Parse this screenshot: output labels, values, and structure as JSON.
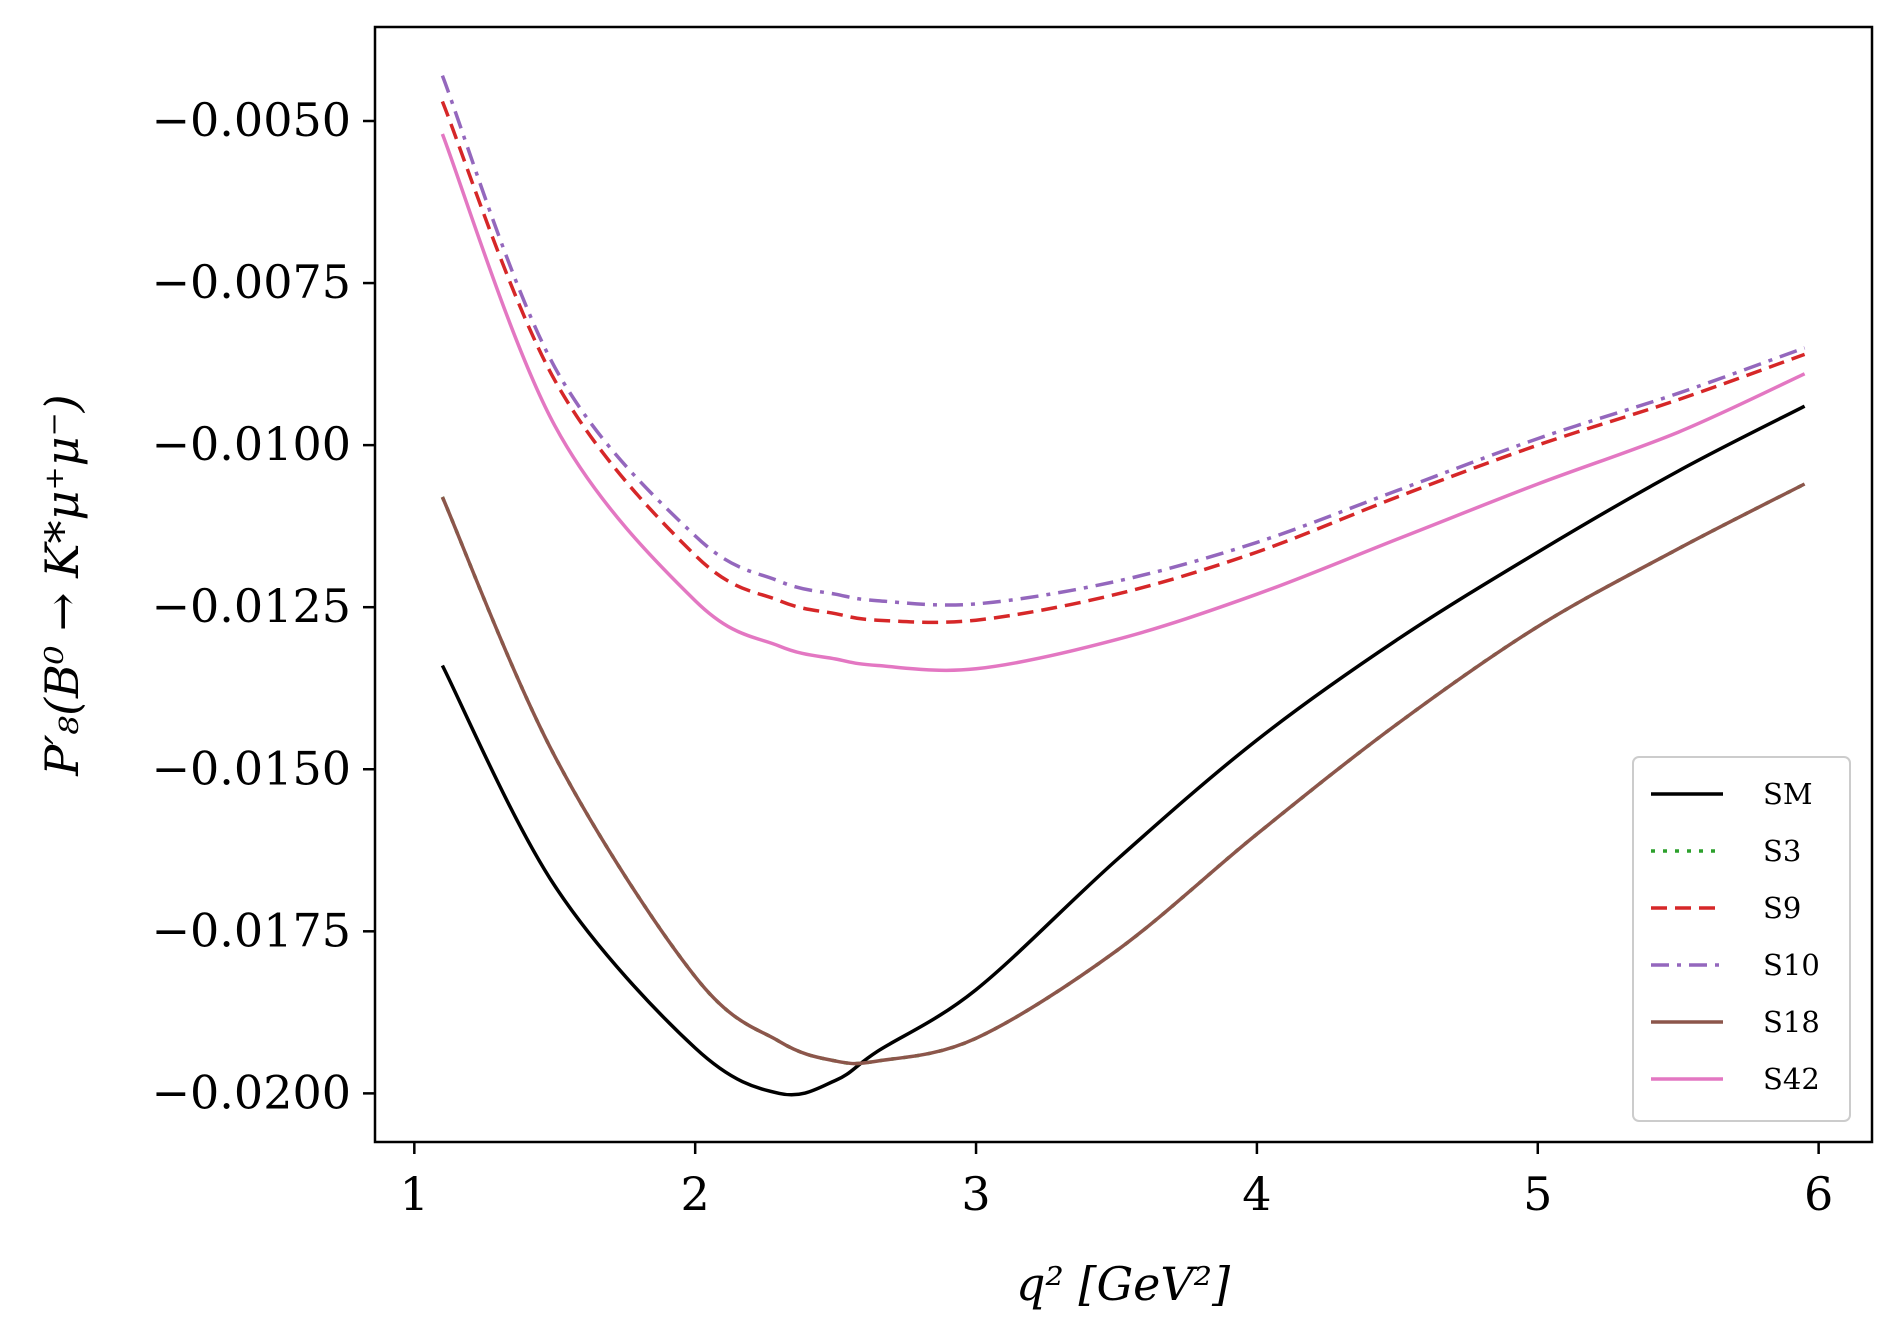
{
  "chart_data": {
    "type": "line",
    "title": "",
    "xlabel": "q² [GeV²]",
    "ylabel": "P′₈(B⁰ → K*μ⁺μ⁻)",
    "xlim": [
      0.86,
      6.19
    ],
    "ylim": [
      -0.02075,
      -0.00355
    ],
    "xticks": [
      1,
      2,
      3,
      4,
      5,
      6
    ],
    "xtick_labels": [
      "1",
      "2",
      "3",
      "4",
      "5",
      "6"
    ],
    "yticks": [
      -0.005,
      -0.0075,
      -0.01,
      -0.0125,
      -0.015,
      -0.0175,
      -0.02
    ],
    "ytick_labels": [
      "−0.0050",
      "−0.0075",
      "−0.0100",
      "−0.0125",
      "−0.0150",
      "−0.0175",
      "−0.0200"
    ],
    "grid": false,
    "legend_position": "lower-right",
    "x": [
      1.1,
      1.5,
      2.0,
      2.3,
      2.5,
      2.65,
      3.0,
      3.5,
      4.0,
      4.5,
      5.0,
      5.5,
      5.95
    ],
    "series": [
      {
        "name": "SM",
        "color": "#000000",
        "dash": "solid",
        "values": [
          -0.0134,
          -0.0168,
          -0.0193,
          -0.02,
          -0.0198,
          -0.01935,
          -0.0184,
          -0.0164,
          -0.01455,
          -0.013,
          -0.01165,
          -0.0104,
          -0.0094
        ]
      },
      {
        "name": "S3",
        "color": "#2ca02c",
        "dash": "dotted",
        "values": [
          -0.0108,
          -0.0148,
          -0.0182,
          -0.0192,
          -0.0195,
          -0.0195,
          -0.01915,
          -0.0178,
          -0.016,
          -0.0143,
          -0.0128,
          -0.0116,
          -0.0106
        ]
      },
      {
        "name": "S9",
        "color": "#d62728",
        "dash": "dashed",
        "values": [
          -0.0047,
          -0.009,
          -0.0117,
          -0.0124,
          -0.0126,
          -0.0127,
          -0.0127,
          -0.0123,
          -0.01165,
          -0.0108,
          -0.01,
          -0.0093,
          -0.0086
        ]
      },
      {
        "name": "S10",
        "color": "#9467bd",
        "dash": "dashdot",
        "values": [
          -0.0043,
          -0.0088,
          -0.0114,
          -0.0121,
          -0.0123,
          -0.0124,
          -0.01245,
          -0.0121,
          -0.0115,
          -0.0107,
          -0.0099,
          -0.0092,
          -0.0085
        ]
      },
      {
        "name": "S18",
        "color": "#8c564b",
        "dash": "solid",
        "values": [
          -0.0108,
          -0.0148,
          -0.0182,
          -0.0192,
          -0.0195,
          -0.0195,
          -0.01915,
          -0.0178,
          -0.016,
          -0.0143,
          -0.0128,
          -0.0116,
          -0.0106
        ]
      },
      {
        "name": "S42",
        "color": "#e377c2",
        "dash": "solid",
        "values": [
          -0.0052,
          -0.0097,
          -0.0124,
          -0.0131,
          -0.0133,
          -0.0134,
          -0.01345,
          -0.013,
          -0.0123,
          -0.01145,
          -0.0106,
          -0.0098,
          -0.0089
        ]
      }
    ]
  }
}
